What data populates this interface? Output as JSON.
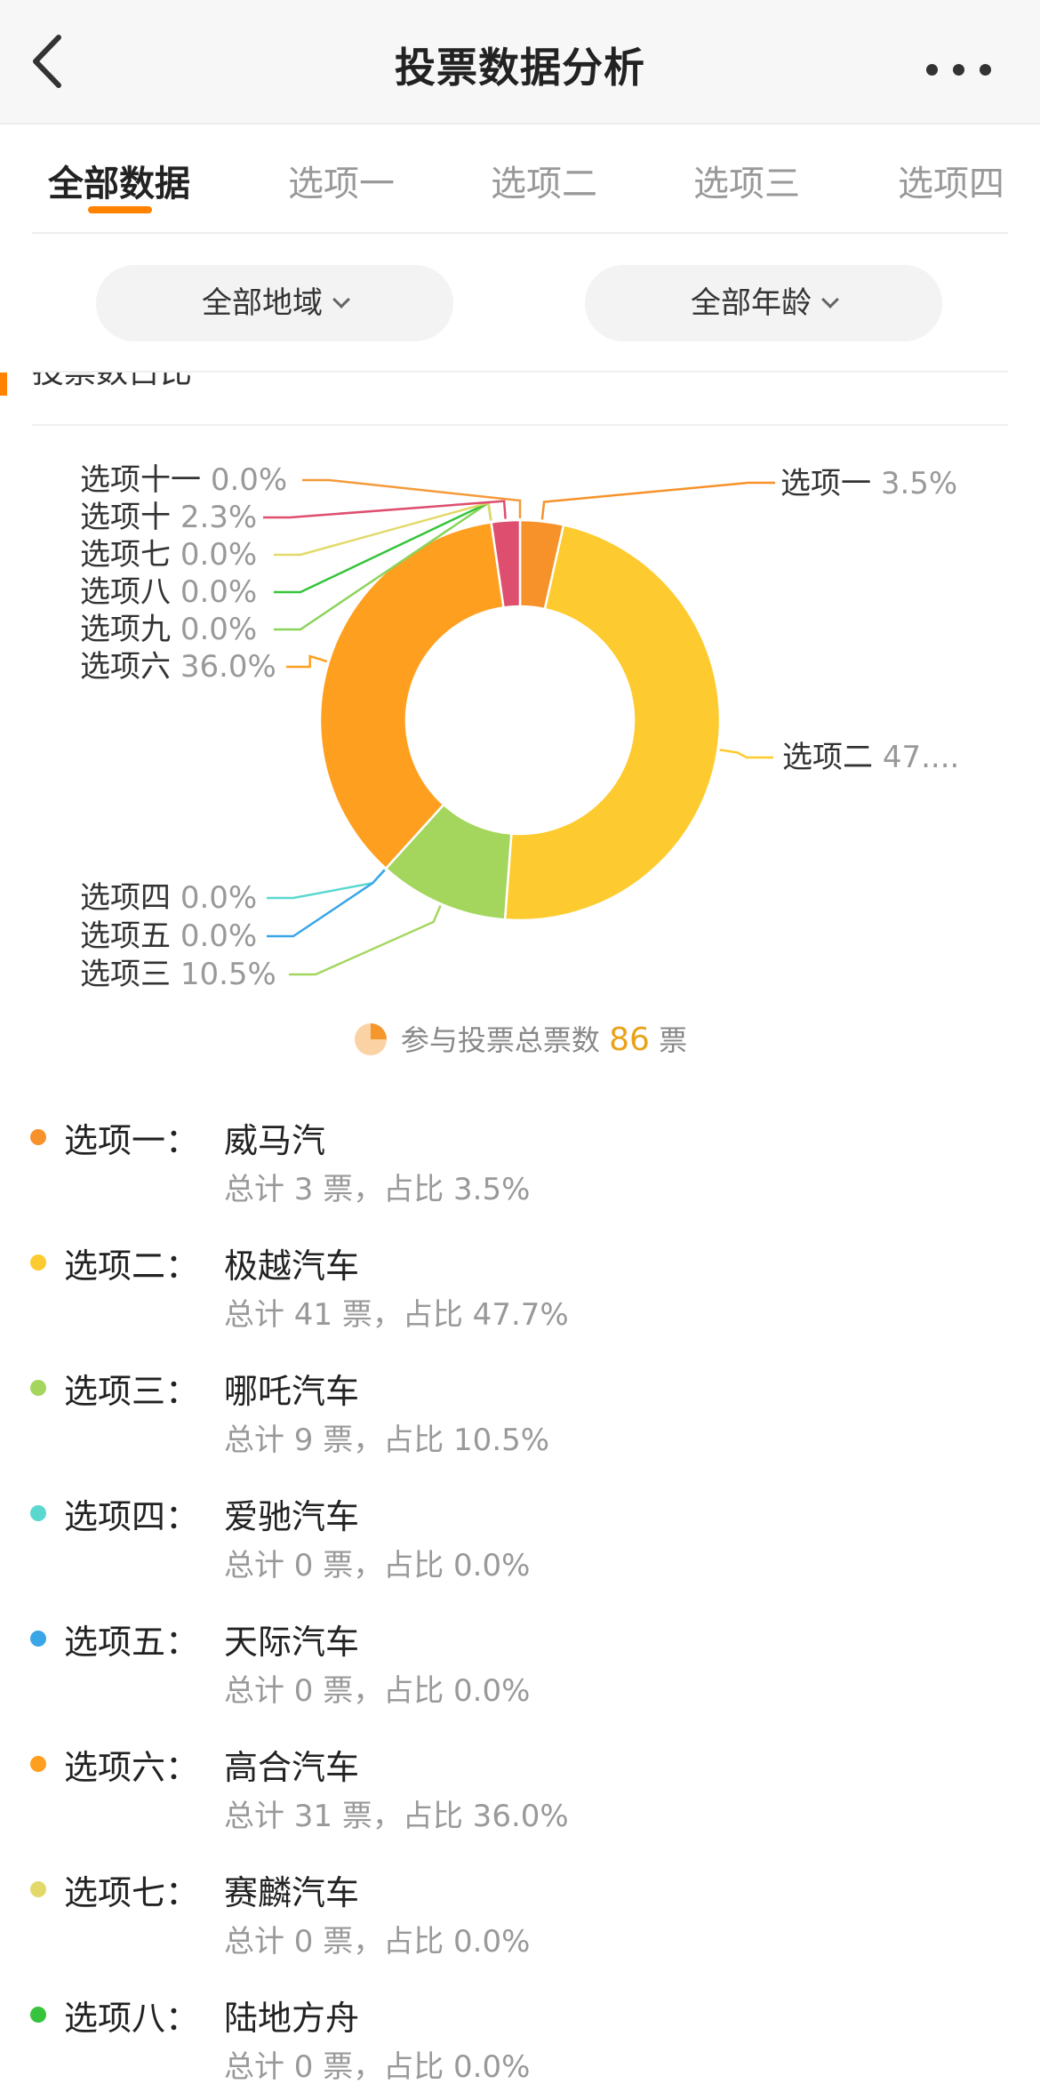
{
  "header": {
    "title": "投票数据分析"
  },
  "tabs": [
    {
      "label": "全部数据",
      "active": true
    },
    {
      "label": "选项一",
      "active": false
    },
    {
      "label": "选项二",
      "active": false
    },
    {
      "label": "选项三",
      "active": false
    },
    {
      "label": "选项四",
      "active": false
    }
  ],
  "filters": {
    "region": "全部地域",
    "age": "全部年龄"
  },
  "section": {
    "title": "投票数占比"
  },
  "colors": {
    "accent": "#ff8200",
    "total_number": "#e9a21a"
  },
  "chart_data": {
    "type": "pie",
    "style": "donut",
    "slices": [
      {
        "name": "选项一",
        "label": "3.5%",
        "value": 3.5,
        "color": "#f7922a"
      },
      {
        "name": "选项二",
        "label": "47....",
        "value": 47.7,
        "color": "#fdcb2f"
      },
      {
        "name": "选项三",
        "label": "10.5%",
        "value": 10.5,
        "color": "#a4d65e"
      },
      {
        "name": "选项四",
        "label": "0.0%",
        "value": 0.0,
        "color": "#5ad8d0"
      },
      {
        "name": "选项五",
        "label": "0.0%",
        "value": 0.0,
        "color": "#3aa6e8"
      },
      {
        "name": "选项六",
        "label": "36.0%",
        "value": 36.0,
        "color": "#ff9f1f"
      },
      {
        "name": "选项九",
        "label": "0.0%",
        "value": 0.0,
        "color": "#8bd45a"
      },
      {
        "name": "选项八",
        "label": "0.0%",
        "value": 0.0,
        "color": "#35c43c"
      },
      {
        "name": "选项七",
        "label": "0.0%",
        "value": 0.0,
        "color": "#e2d96a"
      },
      {
        "name": "选项十",
        "label": "2.3%",
        "value": 2.3,
        "color": "#de4e6e"
      },
      {
        "name": "选项十一",
        "label": "0.0%",
        "value": 0.0,
        "color": "#f59a3a"
      }
    ]
  },
  "total": {
    "prefix": "参与投票总票数",
    "count": "86",
    "suffix": "票"
  },
  "options": [
    {
      "label": "选项一：",
      "brand": "威马汽",
      "stat": "总计 3 票，占比 3.5%",
      "color": "#f7922a"
    },
    {
      "label": "选项二：",
      "brand": "极越汽车",
      "stat": "总计 41 票，占比 47.7%",
      "color": "#fdcb2f"
    },
    {
      "label": "选项三：",
      "brand": "哪吒汽车",
      "stat": "总计 9 票，占比 10.5%",
      "color": "#a4d65e"
    },
    {
      "label": "选项四：",
      "brand": "爱驰汽车",
      "stat": "总计 0 票，占比 0.0%",
      "color": "#5ad8d0"
    },
    {
      "label": "选项五：",
      "brand": "天际汽车",
      "stat": "总计 0 票，占比 0.0%",
      "color": "#3aa6e8"
    },
    {
      "label": "选项六：",
      "brand": "高合汽车",
      "stat": "总计 31 票，占比 36.0%",
      "color": "#ff9f1f"
    },
    {
      "label": "选项七：",
      "brand": "赛麟汽车",
      "stat": "总计 0 票，占比 0.0%",
      "color": "#e2d96a"
    },
    {
      "label": "选项八：",
      "brand": "陆地方舟",
      "stat": "总计 0 票，占比 0.0%",
      "color": "#35c43c"
    }
  ]
}
